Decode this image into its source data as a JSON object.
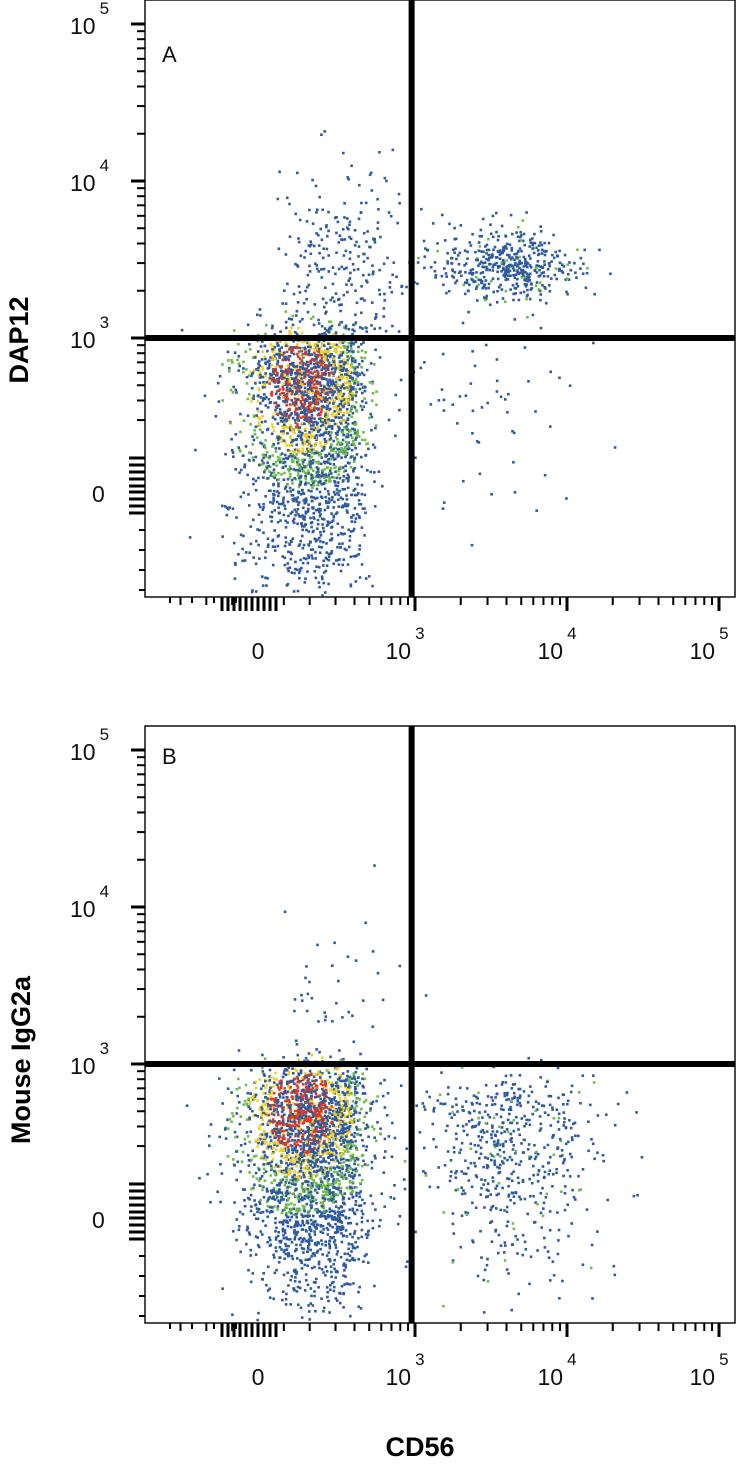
{
  "chart_data": [
    {
      "type": "scatter",
      "panel_label": "A",
      "xlabel": "CD56",
      "ylabel": "DAP12",
      "x_scale": "biexponential",
      "y_scale": "biexponential",
      "x_ticks": [
        {
          "base": "0",
          "exp": "",
          "value": 0
        },
        {
          "base": "10",
          "exp": "3",
          "value": 1000
        },
        {
          "base": "10",
          "exp": "4",
          "value": 10000
        },
        {
          "base": "10",
          "exp": "5",
          "value": 100000
        }
      ],
      "y_ticks": [
        {
          "base": "0",
          "exp": "",
          "value": 0
        },
        {
          "base": "10",
          "exp": "3",
          "value": 1000
        },
        {
          "base": "10",
          "exp": "4",
          "value": 10000
        },
        {
          "base": "10",
          "exp": "5",
          "value": 100000
        }
      ],
      "quadrant_gates": {
        "x": 950,
        "y": 1000
      },
      "populations": [
        {
          "cx": 200,
          "cy": 350,
          "sx": 130,
          "sy": 360,
          "n": 2600,
          "density": "high"
        },
        {
          "cx": 350,
          "cy": 3000,
          "sx": 0.25,
          "sy": 0.3,
          "n": 260,
          "density": "low"
        },
        {
          "cx": 4000,
          "cy": 3000,
          "sx": 0.22,
          "sy": 0.12,
          "n": 470,
          "density": "medium"
        },
        {
          "cx": 3000,
          "cy": 400,
          "sx": 0.3,
          "sy": 300,
          "n": 60,
          "density": "low"
        }
      ]
    },
    {
      "type": "scatter",
      "panel_label": "B",
      "xlabel": "CD56",
      "ylabel": "Mouse IgG2a",
      "x_scale": "biexponential",
      "y_scale": "biexponential",
      "x_ticks": [
        {
          "base": "0",
          "exp": "",
          "value": 0
        },
        {
          "base": "10",
          "exp": "3",
          "value": 1000
        },
        {
          "base": "10",
          "exp": "4",
          "value": 10000
        },
        {
          "base": "10",
          "exp": "5",
          "value": 100000
        }
      ],
      "y_ticks": [
        {
          "base": "0",
          "exp": "",
          "value": 0
        },
        {
          "base": "10",
          "exp": "3",
          "value": 1000
        },
        {
          "base": "10",
          "exp": "4",
          "value": 10000
        },
        {
          "base": "10",
          "exp": "5",
          "value": 100000
        }
      ],
      "quadrant_gates": {
        "x": 950,
        "y": 1000
      },
      "populations": [
        {
          "cx": 200,
          "cy": 300,
          "sx": 130,
          "sy": 300,
          "n": 2700,
          "density": "high"
        },
        {
          "cx": 4000,
          "cy": 300,
          "sx": 0.32,
          "sy": 260,
          "n": 600,
          "density": "medium"
        },
        {
          "cx": 350,
          "cy": 2500,
          "sx": 0.2,
          "sy": 0.35,
          "n": 50,
          "density": "low"
        }
      ]
    }
  ],
  "palette": {
    "low": "#2e5aa0",
    "mid": "#6fbe44",
    "high": "#f0d020",
    "peak": "#e03a1e",
    "gate": "#000000",
    "frame": "#000000"
  }
}
